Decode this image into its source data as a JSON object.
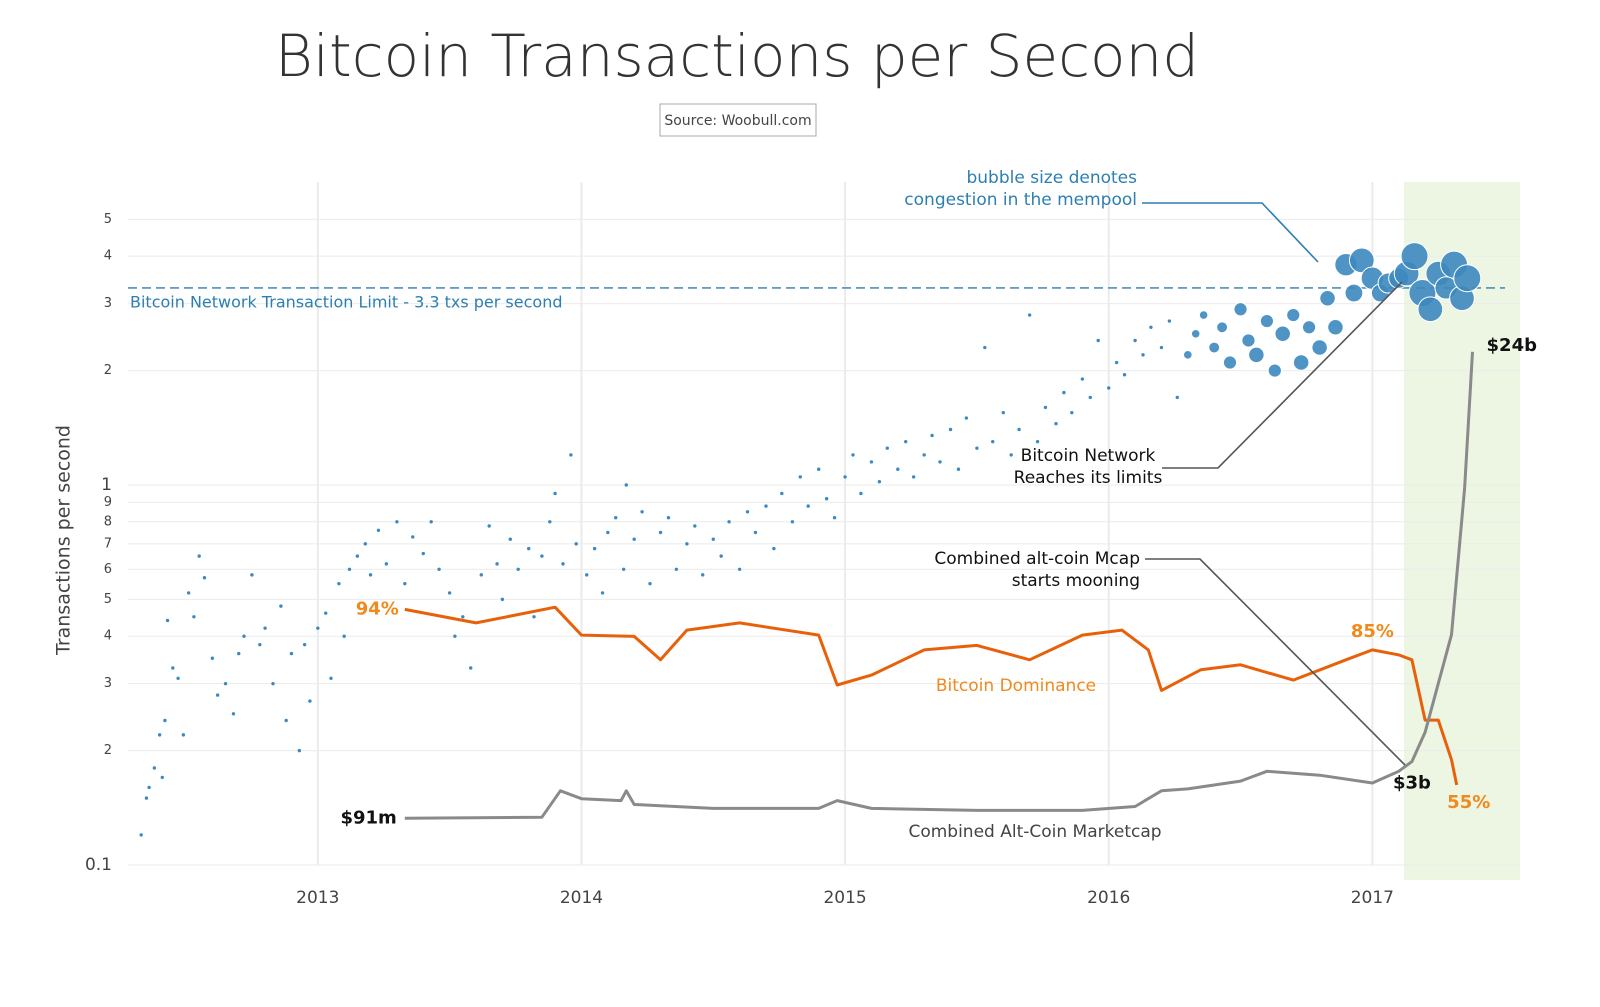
{
  "chart_data": {
    "type": "scatter",
    "title": "Bitcoin Transactions per Second",
    "source": "Source: Woobull.com",
    "ylabel": "Transactions per second",
    "color": "#3d88bf",
    "x": [
      2012.33,
      2012.35,
      2012.36,
      2012.38,
      2012.4,
      2012.41,
      2012.42,
      2012.43,
      2012.45,
      2012.47,
      2012.49,
      2012.51,
      2012.53,
      2012.55,
      2012.57,
      2012.6,
      2012.62,
      2012.65,
      2012.68,
      2012.7,
      2012.72,
      2012.75,
      2012.78,
      2012.8,
      2012.83,
      2012.86,
      2012.88,
      2012.9,
      2012.93,
      2012.95,
      2012.97,
      2013.0,
      2013.03,
      2013.05,
      2013.08,
      2013.1,
      2013.12,
      2013.15,
      2013.18,
      2013.2,
      2013.23,
      2013.26,
      2013.3,
      2013.33,
      2013.36,
      2013.4,
      2013.43,
      2013.46,
      2013.5,
      2013.52,
      2013.55,
      2013.58,
      2013.62,
      2013.65,
      2013.68,
      2013.7,
      2013.73,
      2013.76,
      2013.8,
      2013.82,
      2013.85,
      2013.88,
      2013.9,
      2013.93,
      2013.96,
      2013.98,
      2014.02,
      2014.05,
      2014.08,
      2014.1,
      2014.13,
      2014.16,
      2014.17,
      2014.2,
      2014.23,
      2014.26,
      2014.3,
      2014.33,
      2014.36,
      2014.4,
      2014.43,
      2014.46,
      2014.5,
      2014.53,
      2014.56,
      2014.6,
      2014.63,
      2014.66,
      2014.7,
      2014.73,
      2014.76,
      2014.8,
      2014.83,
      2014.86,
      2014.9,
      2014.93,
      2014.96,
      2015.0,
      2015.03,
      2015.06,
      2015.1,
      2015.13,
      2015.16,
      2015.2,
      2015.23,
      2015.26,
      2015.3,
      2015.33,
      2015.36,
      2015.4,
      2015.43,
      2015.46,
      2015.5,
      2015.53,
      2015.56,
      2015.6,
      2015.63,
      2015.66,
      2015.7,
      2015.73,
      2015.76,
      2015.8,
      2015.83,
      2015.86,
      2015.9,
      2015.93,
      2015.96,
      2016.0,
      2016.03,
      2016.06,
      2016.1,
      2016.13,
      2016.16,
      2016.2,
      2016.23,
      2016.26,
      2016.3,
      2016.33,
      2016.36,
      2016.4,
      2016.43,
      2016.46,
      2016.5,
      2016.53,
      2016.56,
      2016.6,
      2016.63,
      2016.66,
      2016.7,
      2016.73,
      2016.76,
      2016.8,
      2016.83,
      2016.86,
      2016.9,
      2016.93,
      2016.96,
      2017.0,
      2017.03,
      2017.06,
      2017.1,
      2017.13,
      2017.16,
      2017.19,
      2017.22,
      2017.25,
      2017.28,
      2017.31,
      2017.34,
      2017.36
    ],
    "values": [
      0.12,
      0.15,
      0.16,
      0.18,
      0.22,
      0.17,
      0.24,
      0.44,
      0.33,
      0.31,
      0.22,
      0.52,
      0.45,
      0.65,
      0.57,
      0.35,
      0.28,
      0.3,
      0.25,
      0.36,
      0.4,
      0.58,
      0.38,
      0.42,
      0.3,
      0.48,
      0.24,
      0.36,
      0.2,
      0.38,
      0.27,
      0.42,
      0.46,
      0.31,
      0.55,
      0.4,
      0.6,
      0.65,
      0.7,
      0.58,
      0.76,
      0.62,
      0.8,
      0.55,
      0.73,
      0.66,
      0.8,
      0.6,
      0.52,
      0.4,
      0.45,
      0.33,
      0.58,
      0.78,
      0.62,
      0.5,
      0.72,
      0.6,
      0.68,
      0.45,
      0.65,
      0.8,
      0.95,
      0.62,
      1.2,
      0.7,
      0.58,
      0.68,
      0.52,
      0.75,
      0.82,
      0.6,
      1.0,
      0.72,
      0.85,
      0.55,
      0.75,
      0.82,
      0.6,
      0.7,
      0.78,
      0.58,
      0.72,
      0.65,
      0.8,
      0.6,
      0.85,
      0.75,
      0.88,
      0.68,
      0.95,
      0.8,
      1.05,
      0.88,
      1.1,
      0.92,
      0.82,
      1.05,
      1.2,
      0.95,
      1.15,
      1.02,
      1.25,
      1.1,
      1.3,
      1.05,
      1.2,
      1.35,
      1.15,
      1.4,
      1.1,
      1.5,
      1.25,
      2.3,
      1.3,
      1.55,
      1.2,
      1.4,
      2.8,
      1.3,
      1.6,
      1.45,
      1.75,
      1.55,
      1.9,
      1.7,
      2.4,
      1.8,
      2.1,
      1.95,
      2.4,
      2.2,
      2.6,
      2.3,
      2.7,
      1.7,
      2.2,
      2.5,
      2.8,
      2.3,
      2.6,
      2.1,
      2.9,
      2.4,
      2.2,
      2.7,
      2.0,
      2.5,
      2.8,
      2.1,
      2.6,
      2.3,
      3.1,
      2.6,
      3.8,
      3.2,
      3.9,
      3.5,
      3.2,
      3.4,
      3.5,
      3.6,
      4.0,
      3.2,
      2.9,
      3.6,
      3.3,
      3.8,
      3.1,
      3.5
    ],
    "sizes": [
      1,
      1,
      1,
      1,
      1,
      1,
      1,
      1,
      1,
      1,
      1,
      1,
      1,
      1,
      1,
      1,
      1,
      1,
      1,
      1,
      1,
      1,
      1,
      1,
      1,
      1,
      1,
      1,
      1,
      1,
      1,
      1,
      1,
      1,
      1,
      1,
      1,
      1,
      1,
      1,
      1,
      1,
      1,
      1,
      1,
      1,
      1,
      1,
      1,
      1,
      1,
      1,
      1,
      1,
      1,
      1,
      1,
      1,
      1,
      1,
      1,
      1,
      1,
      1,
      1,
      1,
      1,
      1,
      1,
      1,
      1,
      1,
      1,
      1,
      1,
      1,
      1,
      1,
      1,
      1,
      1,
      1,
      1,
      1,
      1,
      1,
      1,
      1,
      1,
      1,
      1,
      1,
      1,
      1,
      1,
      1,
      1,
      1,
      1,
      1,
      1,
      1,
      1,
      1,
      1,
      1,
      1,
      1,
      1,
      1,
      1,
      1,
      1,
      1,
      1,
      1,
      1,
      1,
      1,
      1,
      1,
      1,
      1,
      1,
      1,
      1,
      1,
      1,
      1,
      1,
      1,
      1,
      1,
      1,
      1,
      1,
      2,
      2,
      2,
      3,
      3,
      4,
      4,
      4,
      5,
      4,
      4,
      5,
      4,
      5,
      4,
      5,
      5,
      5,
      8,
      6,
      9,
      8,
      6,
      7,
      7,
      9,
      10,
      10,
      9,
      9,
      8,
      10,
      9,
      10
    ],
    "xlim": [
      2012.28,
      2017.56
    ],
    "ylim": [
      0.1,
      6.27
    ],
    "log_y": true,
    "grid": true,
    "xticks": [
      2013,
      2014,
      2015,
      2016,
      2017
    ],
    "yticks": [
      0.1,
      {
        "value": 0.2,
        "label": "2"
      },
      {
        "value": 0.3,
        "label": "3"
      },
      {
        "value": 0.4,
        "label": "4"
      },
      {
        "value": 0.5,
        "label": "5"
      },
      {
        "value": 0.6,
        "label": "6"
      },
      {
        "value": 0.7,
        "label": "7"
      },
      {
        "value": 0.8,
        "label": "8"
      },
      {
        "value": 0.9,
        "label": "9"
      },
      1,
      2,
      3,
      4,
      5
    ],
    "highlight": {
      "range": [
        2017.12,
        2017.56
      ],
      "color": "#edf5e3"
    },
    "reference_line": {
      "value": 3.3,
      "label": "Bitcoin Network Transaction Limit - 3.3 txs per second",
      "color": "#2d7fb2"
    },
    "lines": [
      {
        "name": "Bitcoin Dominance",
        "color": "#e8610a",
        "label_color": "#f08a1c",
        "ylim": [
          37.2,
          189
        ],
        "x": [
          2013.33,
          2013.6,
          2013.9,
          2014.0,
          2014.2,
          2014.3,
          2014.4,
          2014.6,
          2014.9,
          2014.97,
          2015.1,
          2015.3,
          2015.5,
          2015.7,
          2015.9,
          2016.05,
          2016.15,
          2016.2,
          2016.35,
          2016.5,
          2016.7,
          2016.9,
          2017.0,
          2017.1,
          2017.15,
          2017.2,
          2017.25,
          2017.3,
          2017.32
        ],
        "values": [
          94,
          91,
          94.5,
          88.3,
          88,
          82.8,
          89.4,
          91,
          88.3,
          77.2,
          79.4,
          85,
          86,
          82.8,
          88.3,
          89.4,
          85,
          76,
          80.6,
          81.7,
          78.3,
          82.8,
          85,
          83.9,
          82.8,
          69.4,
          69.4,
          60.6,
          55
        ],
        "value_labels": [
          "94%",
          null,
          null,
          null,
          null,
          null,
          null,
          null,
          null,
          null,
          null,
          null,
          null,
          null,
          null,
          null,
          null,
          null,
          null,
          null,
          null,
          null,
          "85%",
          null,
          null,
          null,
          null,
          null,
          "55%"
        ]
      },
      {
        "name": "Combined Alt-Coin Marketcap",
        "color": "#8a8a8a",
        "label_color": "#111111",
        "ylim": [
          -2300000000,
          32700000000
        ],
        "x": [
          2013.33,
          2013.85,
          2013.92,
          2014.0,
          2014.15,
          2014.17,
          2014.2,
          2014.5,
          2014.9,
          2014.97,
          2015.1,
          2015.5,
          2015.9,
          2016.1,
          2016.2,
          2016.3,
          2016.5,
          2016.6,
          2016.8,
          2017.0,
          2017.1,
          2017.15,
          2017.2,
          2017.25,
          2017.3,
          2017.35,
          2017.38
        ],
        "values": [
          91000000,
          150000000,
          1500000000,
          1100000000,
          1000000000,
          1500000000,
          800000000,
          600000000,
          600000000,
          1000000000,
          600000000,
          500000000,
          500000000,
          700000000,
          1500000000,
          1600000000,
          2000000000,
          2500000000,
          2300000000,
          1900000000,
          2500000000,
          3000000000,
          4500000000,
          7000000000,
          9500000000,
          17000000000,
          24000000000
        ],
        "value_labels": [
          "$91m",
          null,
          null,
          null,
          null,
          null,
          null,
          null,
          null,
          null,
          null,
          null,
          null,
          null,
          null,
          null,
          null,
          null,
          null,
          null,
          null,
          "$3b",
          null,
          null,
          null,
          null,
          "$24b"
        ]
      }
    ],
    "annotations": [
      {
        "lines": [
          "bubble size denotes",
          "congestion in the mempool"
        ],
        "color": "#2d7fb2"
      },
      {
        "lines": [
          "Bitcoin Network",
          "Reaches its limits"
        ],
        "color": "#111111"
      },
      {
        "lines": [
          "Combined alt-coin Mcap",
          "starts mooning"
        ],
        "color": "#111111"
      }
    ]
  }
}
